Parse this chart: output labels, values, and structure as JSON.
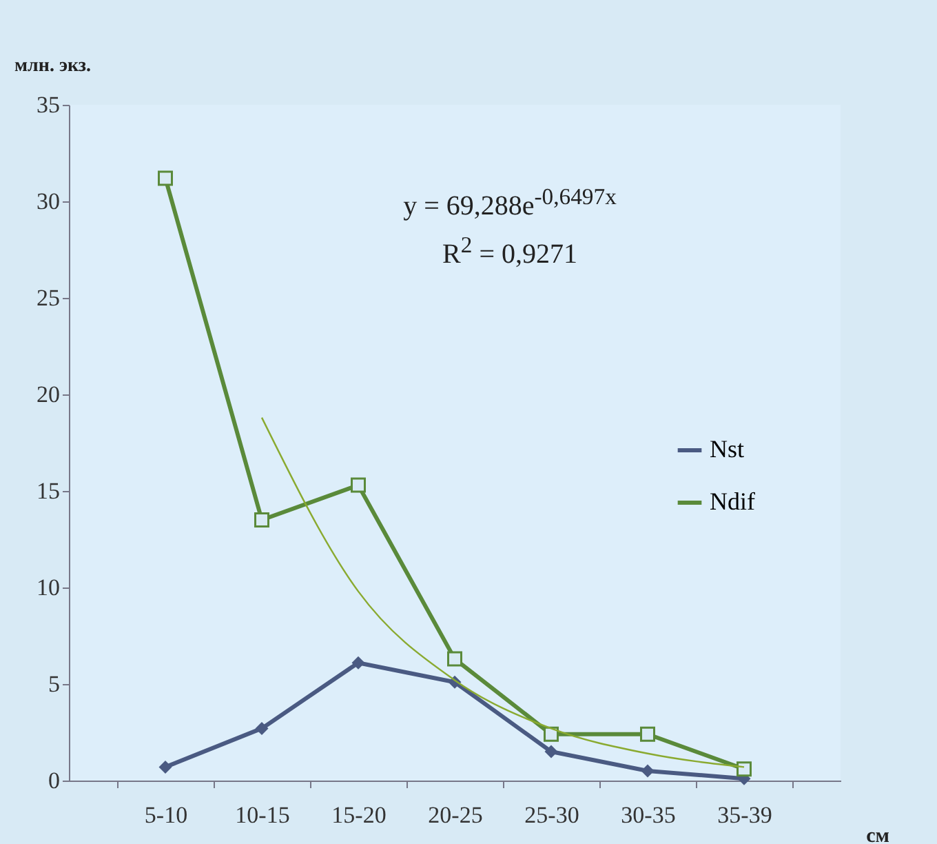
{
  "chart_data": {
    "type": "line",
    "ylabel": "млн. экз.",
    "xlabel": "см",
    "categories": [
      "5-10",
      "10-15",
      "15-20",
      "20-25",
      "25-30",
      "30-35",
      "35-39"
    ],
    "series": [
      {
        "name": "Nst",
        "color": "#4a5a82",
        "marker": "diamond",
        "values": [
          0.7,
          2.7,
          6.1,
          5.1,
          1.5,
          0.5,
          0.1
        ]
      },
      {
        "name": "Ndif",
        "color": "#5a8a3a",
        "marker": "square",
        "values": [
          31.2,
          13.5,
          15.3,
          6.3,
          2.4,
          2.4,
          0.6
        ]
      },
      {
        "color": "#8aaa30",
        "marker": "none",
        "values": [
          null,
          18.8,
          9.8,
          5.2,
          2.7,
          1.4,
          0.7
        ]
      }
    ],
    "ylim": [
      0,
      35
    ],
    "yticks": [
      0,
      5,
      10,
      15,
      20,
      25,
      30,
      35
    ],
    "grid": false,
    "legend": "right",
    "annotations": [
      "y = 69,288e$^{-0,6497x}$",
      "R$^{2}$ = 0,9271"
    ]
  }
}
